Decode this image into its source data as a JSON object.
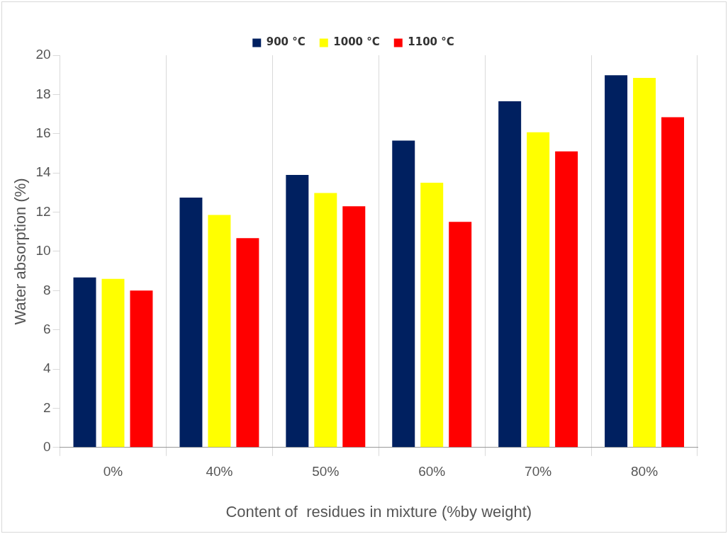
{
  "chart_data": {
    "type": "bar",
    "xlabel": "Content of  residues in mixture (%by weight)",
    "ylabel": "Water absorption (%)",
    "categories": [
      "0%",
      "40%",
      "50%",
      "60%",
      "70%",
      "80%"
    ],
    "series": [
      {
        "name": "900 °C",
        "color": "#002060",
        "values": [
          8.67,
          12.74,
          13.9,
          15.65,
          17.65,
          18.98
        ]
      },
      {
        "name": "1000 °C",
        "color": "#ffff00",
        "values": [
          8.6,
          11.86,
          12.98,
          13.5,
          16.07,
          18.84
        ]
      },
      {
        "name": "1100 °C",
        "color": "#ff0000",
        "values": [
          8.0,
          10.67,
          12.3,
          11.5,
          15.1,
          16.84
        ]
      }
    ],
    "ylim": [
      0,
      20
    ],
    "yticks": [
      0,
      2,
      4,
      6,
      8,
      10,
      12,
      14,
      16,
      18,
      20
    ],
    "grid": "x",
    "legend": "top"
  }
}
